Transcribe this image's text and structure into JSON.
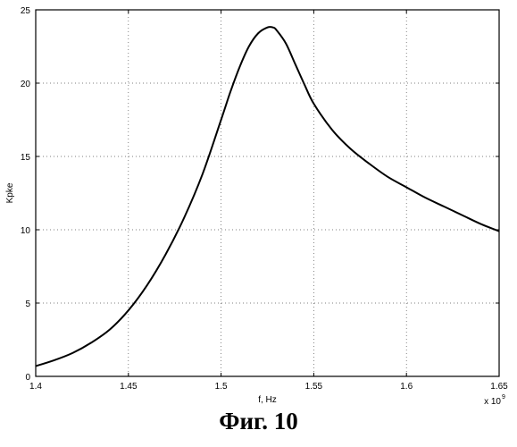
{
  "figure_caption": "Фиг. 10",
  "chart_data": {
    "type": "line",
    "xlabel": "f, Hz",
    "ylabel": "Kpke",
    "x_exponent_base": "x 10",
    "x_exponent_power": "9",
    "xlim": [
      1.4,
      1.65
    ],
    "ylim": [
      0,
      25
    ],
    "xticks": [
      1.4,
      1.45,
      1.5,
      1.55,
      1.6,
      1.65
    ],
    "xtick_labels": [
      "1.4",
      "1.45",
      "1.5",
      "1.55",
      "1.6",
      "1.65"
    ],
    "yticks": [
      0,
      5,
      10,
      15,
      20,
      25
    ],
    "ytick_labels": [
      "0",
      "5",
      "10",
      "15",
      "20",
      "25"
    ],
    "grid": true,
    "series": [
      {
        "color": "#000000",
        "x": [
          1.4,
          1.41,
          1.42,
          1.43,
          1.44,
          1.45,
          1.46,
          1.47,
          1.48,
          1.49,
          1.5,
          1.505,
          1.51,
          1.515,
          1.52,
          1.525,
          1.528,
          1.53,
          1.535,
          1.54,
          1.545,
          1.55,
          1.56,
          1.57,
          1.58,
          1.59,
          1.6,
          1.61,
          1.62,
          1.63,
          1.64,
          1.65
        ],
        "y": [
          0.7,
          1.1,
          1.6,
          2.3,
          3.2,
          4.5,
          6.2,
          8.3,
          10.8,
          13.8,
          17.5,
          19.4,
          21.1,
          22.5,
          23.4,
          23.8,
          23.8,
          23.6,
          22.7,
          21.3,
          19.9,
          18.6,
          16.8,
          15.5,
          14.5,
          13.6,
          12.9,
          12.2,
          11.6,
          11.0,
          10.4,
          9.9
        ]
      }
    ]
  }
}
